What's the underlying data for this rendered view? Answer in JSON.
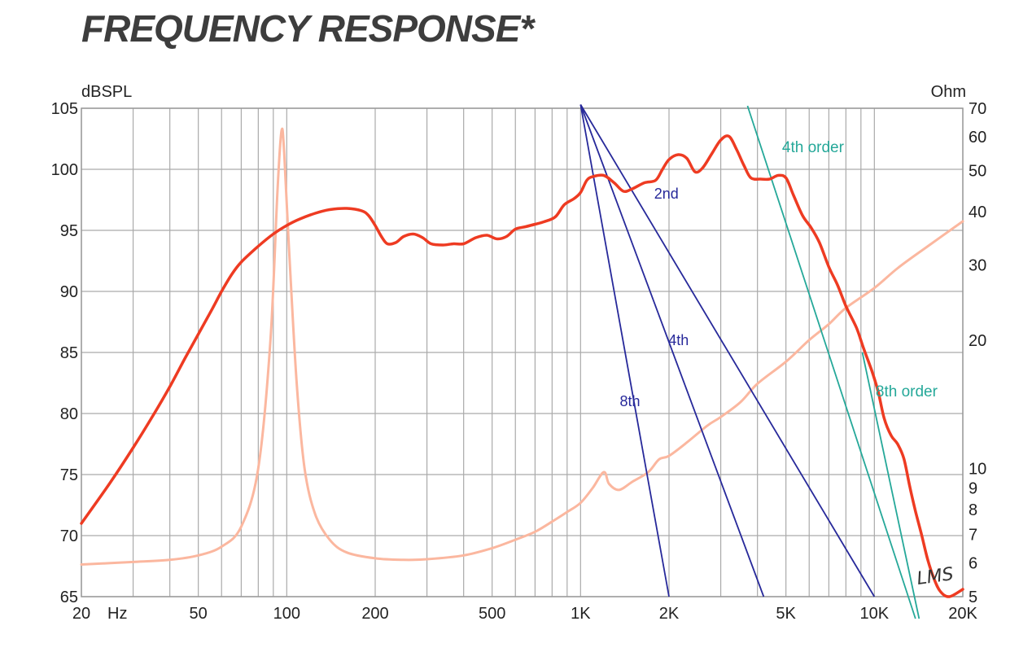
{
  "title": "FREQUENCY RESPONSE*",
  "watermark": "LMS",
  "chart_data": {
    "type": "line",
    "title": "FREQUENCY RESPONSE*",
    "x_axis": {
      "scale": "log",
      "range": [
        20,
        20000
      ],
      "tick_labels": [
        {
          "value": 20,
          "label": "20"
        },
        {
          "value": 50,
          "label": "50"
        },
        {
          "value": 100,
          "label": "100"
        },
        {
          "value": 200,
          "label": "200"
        },
        {
          "value": 500,
          "label": "500"
        },
        {
          "value": 1000,
          "label": "1K"
        },
        {
          "value": 2000,
          "label": "2K"
        },
        {
          "value": 5000,
          "label": "5K"
        },
        {
          "value": 10000,
          "label": "10K"
        },
        {
          "value": 20000,
          "label": "20K"
        }
      ],
      "unit_label": "Hz"
    },
    "y_left": {
      "label": "dBSPL",
      "range": [
        65,
        105
      ],
      "ticks": [
        65,
        70,
        75,
        80,
        85,
        90,
        95,
        100,
        105
      ]
    },
    "y_right": {
      "label": "Ohm",
      "scale": "log",
      "range": [
        5,
        70
      ],
      "ticks": [
        5,
        6,
        7,
        8,
        9,
        10,
        20,
        30,
        40,
        50,
        60,
        70
      ]
    },
    "grid": true,
    "colors": {
      "spl": "#ee3b22",
      "impedance": "#fbb79f",
      "slopes": "#27299a",
      "order_slopes": "#25a899",
      "grid": "#aaaaaa"
    },
    "series": [
      {
        "name": "",
        "axis": "left",
        "points": [
          [
            20,
            71
          ],
          [
            25,
            74.3
          ],
          [
            30,
            77.2
          ],
          [
            35,
            79.8
          ],
          [
            40,
            82.2
          ],
          [
            45,
            84.5
          ],
          [
            50,
            86.5
          ],
          [
            55,
            88.3
          ],
          [
            60,
            90
          ],
          [
            65,
            91.4
          ],
          [
            70,
            92.4
          ],
          [
            80,
            93.7
          ],
          [
            90,
            94.7
          ],
          [
            100,
            95.4
          ],
          [
            110,
            95.9
          ],
          [
            125,
            96.4
          ],
          [
            140,
            96.7
          ],
          [
            160,
            96.8
          ],
          [
            180,
            96.6
          ],
          [
            190,
            96.2
          ],
          [
            200,
            95.4
          ],
          [
            210,
            94.5
          ],
          [
            220,
            93.9
          ],
          [
            235,
            94
          ],
          [
            250,
            94.5
          ],
          [
            270,
            94.7
          ],
          [
            290,
            94.4
          ],
          [
            310,
            93.9
          ],
          [
            340,
            93.8
          ],
          [
            370,
            93.9
          ],
          [
            400,
            93.9
          ],
          [
            440,
            94.4
          ],
          [
            480,
            94.6
          ],
          [
            520,
            94.3
          ],
          [
            560,
            94.5
          ],
          [
            600,
            95.1
          ],
          [
            650,
            95.3
          ],
          [
            700,
            95.5
          ],
          [
            750,
            95.7
          ],
          [
            820,
            96.1
          ],
          [
            880,
            97.1
          ],
          [
            950,
            97.6
          ],
          [
            1000,
            98.1
          ],
          [
            1050,
            99.1
          ],
          [
            1100,
            99.4
          ],
          [
            1200,
            99.5
          ],
          [
            1300,
            98.9
          ],
          [
            1400,
            98.2
          ],
          [
            1500,
            98.4
          ],
          [
            1650,
            98.9
          ],
          [
            1800,
            99.1
          ],
          [
            1900,
            100
          ],
          [
            2000,
            100.8
          ],
          [
            2150,
            101.2
          ],
          [
            2300,
            100.9
          ],
          [
            2450,
            99.8
          ],
          [
            2600,
            100.1
          ],
          [
            2800,
            101.3
          ],
          [
            3000,
            102.4
          ],
          [
            3200,
            102.7
          ],
          [
            3400,
            101.6
          ],
          [
            3600,
            100.3
          ],
          [
            3800,
            99.3
          ],
          [
            4100,
            99.2
          ],
          [
            4400,
            99.2
          ],
          [
            4700,
            99.5
          ],
          [
            5000,
            99.3
          ],
          [
            5300,
            97.9
          ],
          [
            5700,
            96.2
          ],
          [
            6100,
            95.2
          ],
          [
            6500,
            94
          ],
          [
            7000,
            92
          ],
          [
            7500,
            90.5
          ],
          [
            8000,
            88.8
          ],
          [
            8700,
            87
          ],
          [
            9200,
            85.3
          ],
          [
            9800,
            83.5
          ],
          [
            10300,
            81.8
          ],
          [
            10800,
            79.6
          ],
          [
            11400,
            78.2
          ],
          [
            12000,
            77.5
          ],
          [
            12600,
            76.3
          ],
          [
            13200,
            74
          ],
          [
            13800,
            72
          ],
          [
            14500,
            70
          ],
          [
            15200,
            68
          ],
          [
            16000,
            66.4
          ],
          [
            16800,
            65.4
          ],
          [
            18000,
            65
          ],
          [
            20000,
            65.6
          ]
        ]
      },
      {
        "name": "",
        "axis": "right",
        "points": [
          [
            20,
            5.95
          ],
          [
            30,
            6.03
          ],
          [
            40,
            6.1
          ],
          [
            50,
            6.25
          ],
          [
            60,
            6.55
          ],
          [
            70,
            7.3
          ],
          [
            80,
            10
          ],
          [
            88,
            20
          ],
          [
            93,
            45
          ],
          [
            96,
            62
          ],
          [
            98,
            55
          ],
          [
            102,
            32
          ],
          [
            108,
            16
          ],
          [
            115,
            10
          ],
          [
            125,
            7.8
          ],
          [
            140,
            6.8
          ],
          [
            160,
            6.35
          ],
          [
            200,
            6.15
          ],
          [
            250,
            6.1
          ],
          [
            300,
            6.12
          ],
          [
            400,
            6.25
          ],
          [
            500,
            6.5
          ],
          [
            600,
            6.8
          ],
          [
            700,
            7.1
          ],
          [
            800,
            7.5
          ],
          [
            900,
            7.9
          ],
          [
            1000,
            8.3
          ],
          [
            1100,
            9
          ],
          [
            1200,
            9.8
          ],
          [
            1250,
            9.2
          ],
          [
            1350,
            8.9
          ],
          [
            1500,
            9.3
          ],
          [
            1700,
            9.8
          ],
          [
            1850,
            10.5
          ],
          [
            2000,
            10.7
          ],
          [
            2300,
            11.5
          ],
          [
            2700,
            12.6
          ],
          [
            3000,
            13.2
          ],
          [
            3500,
            14.3
          ],
          [
            4000,
            15.8
          ],
          [
            5000,
            17.8
          ],
          [
            6000,
            20
          ],
          [
            7000,
            21.8
          ],
          [
            8000,
            23.8
          ],
          [
            10000,
            26.5
          ],
          [
            12000,
            29.5
          ],
          [
            15000,
            33
          ],
          [
            20000,
            38
          ]
        ]
      },
      {
        "name": "",
        "axis": "left",
        "style": "slope",
        "points": [
          [
            1000,
            105.3
          ],
          [
            10000,
            65
          ]
        ]
      },
      {
        "name": "",
        "axis": "left",
        "style": "slope",
        "points": [
          [
            1000,
            105.3
          ],
          [
            4200,
            65
          ]
        ]
      },
      {
        "name": "",
        "axis": "left",
        "style": "slope",
        "points": [
          [
            1000,
            105.3
          ],
          [
            2000,
            65
          ]
        ]
      },
      {
        "name": "",
        "axis": "left",
        "style": "order-slope",
        "points": [
          [
            3700,
            105.2
          ],
          [
            13800,
            63.2
          ]
        ]
      },
      {
        "name": "",
        "axis": "left",
        "style": "order-slope",
        "points": [
          [
            9100,
            85
          ],
          [
            14200,
            63.2
          ]
        ]
      }
    ],
    "annotations": [
      {
        "text": "2nd",
        "x": 1780,
        "y": 97.6,
        "color": "#27299a"
      },
      {
        "text": "4th",
        "x": 1990,
        "y": 85.6,
        "color": "#27299a"
      },
      {
        "text": "8th",
        "x": 1360,
        "y": 80.6,
        "color": "#27299a"
      },
      {
        "text": "4th order",
        "x": 4850,
        "y": 101.4,
        "color": "#25a899"
      },
      {
        "text": "8th order",
        "x": 10100,
        "y": 81.4,
        "color": "#25a899"
      }
    ]
  }
}
